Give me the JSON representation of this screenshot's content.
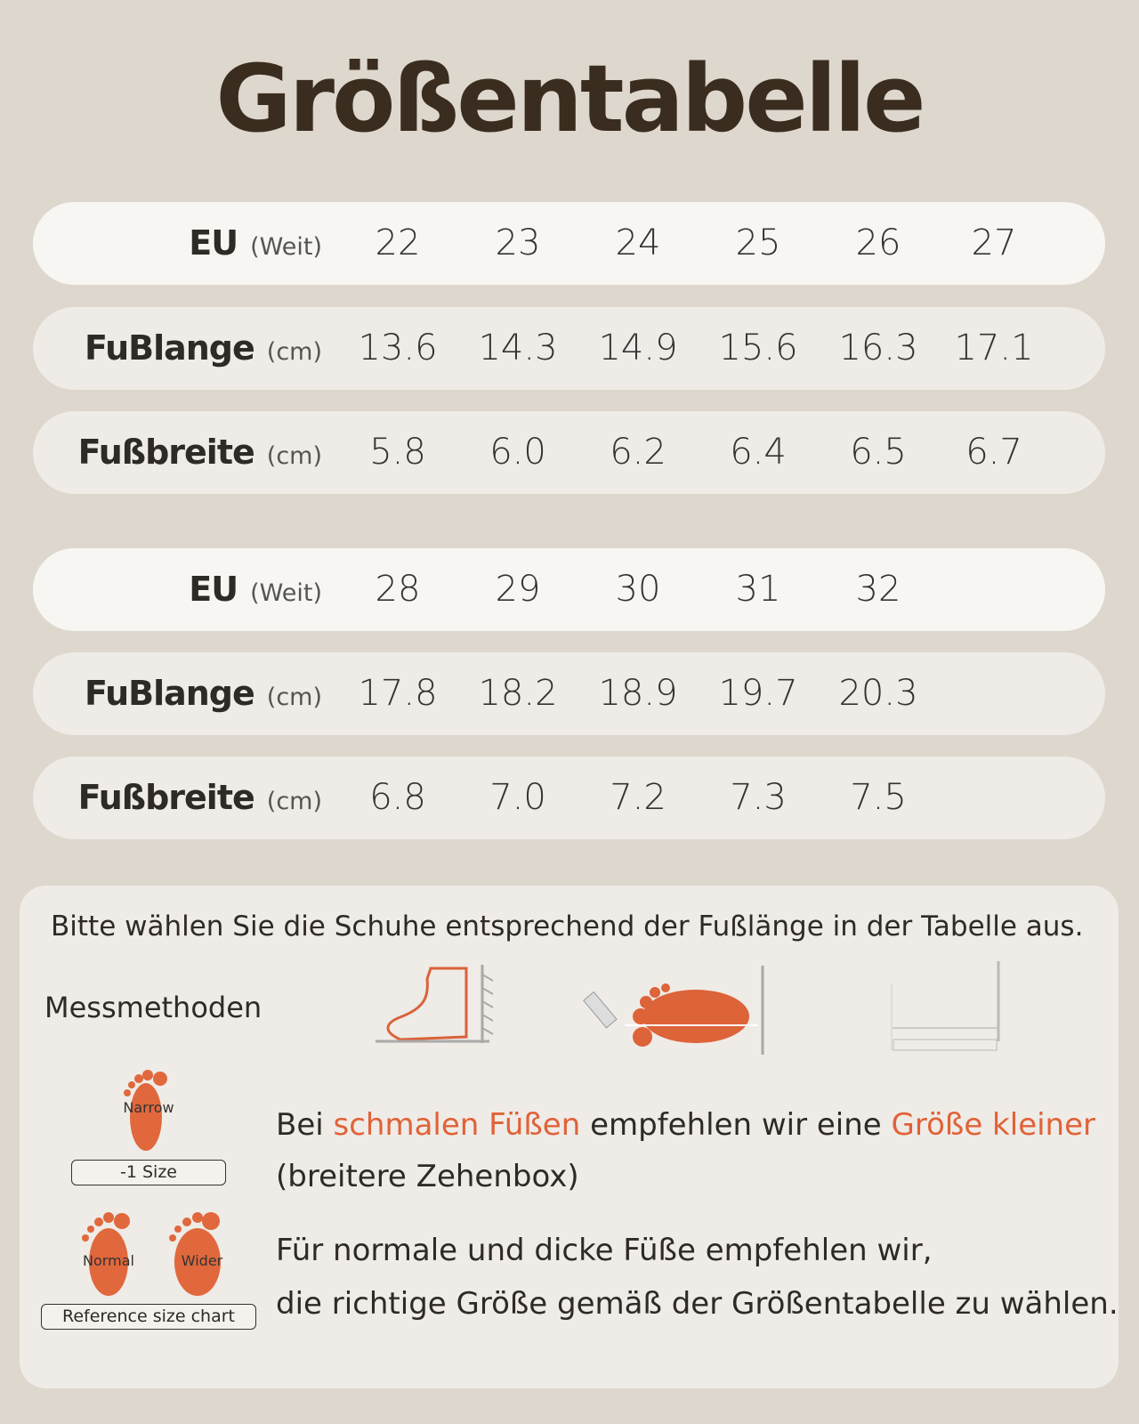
{
  "title": "Größentabelle",
  "tables": [
    {
      "rows": [
        {
          "label": "EU",
          "unit": "(Weit)",
          "values": [
            "22",
            "23",
            "24",
            "25",
            "26",
            "27"
          ]
        },
        {
          "label": "FuBlange",
          "unit": "(cm)",
          "values": [
            "13.6",
            "14.3",
            "14.9",
            "15.6",
            "16.3",
            "17.1"
          ]
        },
        {
          "label": "Fußbreite",
          "unit": "(cm)",
          "values": [
            "5.8",
            "6.0",
            "6.2",
            "6.4",
            "6.5",
            "6.7"
          ]
        }
      ]
    },
    {
      "rows": [
        {
          "label": "EU",
          "unit": "(Weit)",
          "values": [
            "28",
            "29",
            "30",
            "31",
            "32"
          ]
        },
        {
          "label": "FuBlange",
          "unit": "(cm)",
          "values": [
            "17.8",
            "18.2",
            "18.9",
            "19.7",
            "20.3"
          ]
        },
        {
          "label": "Fußbreite",
          "unit": "(cm)",
          "values": [
            "6.8",
            "7.0",
            "7.2",
            "7.3",
            "7.5"
          ]
        }
      ]
    }
  ],
  "note": "Bitte wählen Sie die Schuhe entsprechend der Fußlänge in der Tabelle aus.",
  "methods_title": "Messmethoden",
  "narrow": {
    "foot_label": "Narrow",
    "badge": "-1 Size",
    "text": [
      "Bei ",
      "schmalen Füßen",
      " empfehlen wir eine ",
      "Größe kleiner"
    ],
    "text_line2": "(breitere Zehenbox)"
  },
  "normal": {
    "foot_labels": [
      "Normal",
      "Wider"
    ],
    "badge": "Reference size chart",
    "lines": [
      "Für normale und dicke Füße empfehlen wir,",
      "die richtige Größe gemäß der Größentabelle zu wählen."
    ]
  }
}
